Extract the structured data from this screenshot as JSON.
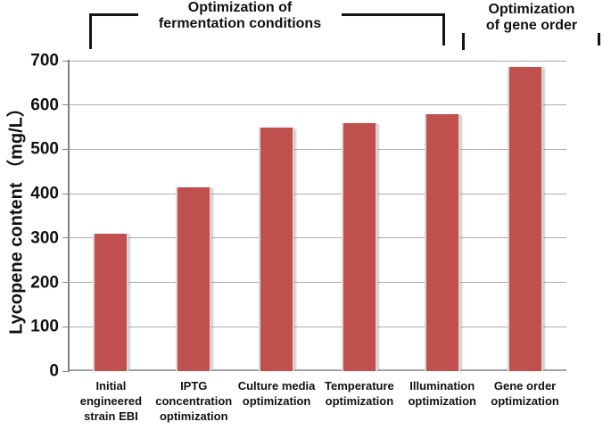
{
  "chart_data": {
    "type": "bar",
    "title": "",
    "xlabel": "",
    "ylabel": "Lycopene content （mg/L）",
    "ylim": [
      0,
      700
    ],
    "ytick_interval": 100,
    "yticks": [
      0,
      100,
      200,
      300,
      400,
      500,
      600,
      700
    ],
    "grid": true,
    "legend": "none",
    "bar_color": "#c0504d",
    "categories": [
      "Initial engineered strain EBI",
      "IPTG concentration optimization",
      "Culture media optimization",
      "Temperature optimization",
      "Illumination optimization",
      "Gene order optimization"
    ],
    "category_display": [
      "Initial\nengineered\nstrain EBI",
      "IPTG\nconcentration\noptimization",
      "Culture media\noptimization",
      "Temperature\noptimization",
      "Illumination\noptimization",
      "Gene order\noptimization"
    ],
    "values": [
      310,
      415,
      550,
      560,
      580,
      685
    ],
    "annotations": [
      {
        "text": "Optimization of fermentation conditions",
        "line1": "Optimization of",
        "line2": "fermentation conditions",
        "categories_span": [
          1,
          5
        ]
      },
      {
        "text": "Optimization of gene order",
        "line1": "Optimization",
        "line2": "of gene order",
        "categories_span": [
          6,
          6
        ]
      }
    ]
  }
}
